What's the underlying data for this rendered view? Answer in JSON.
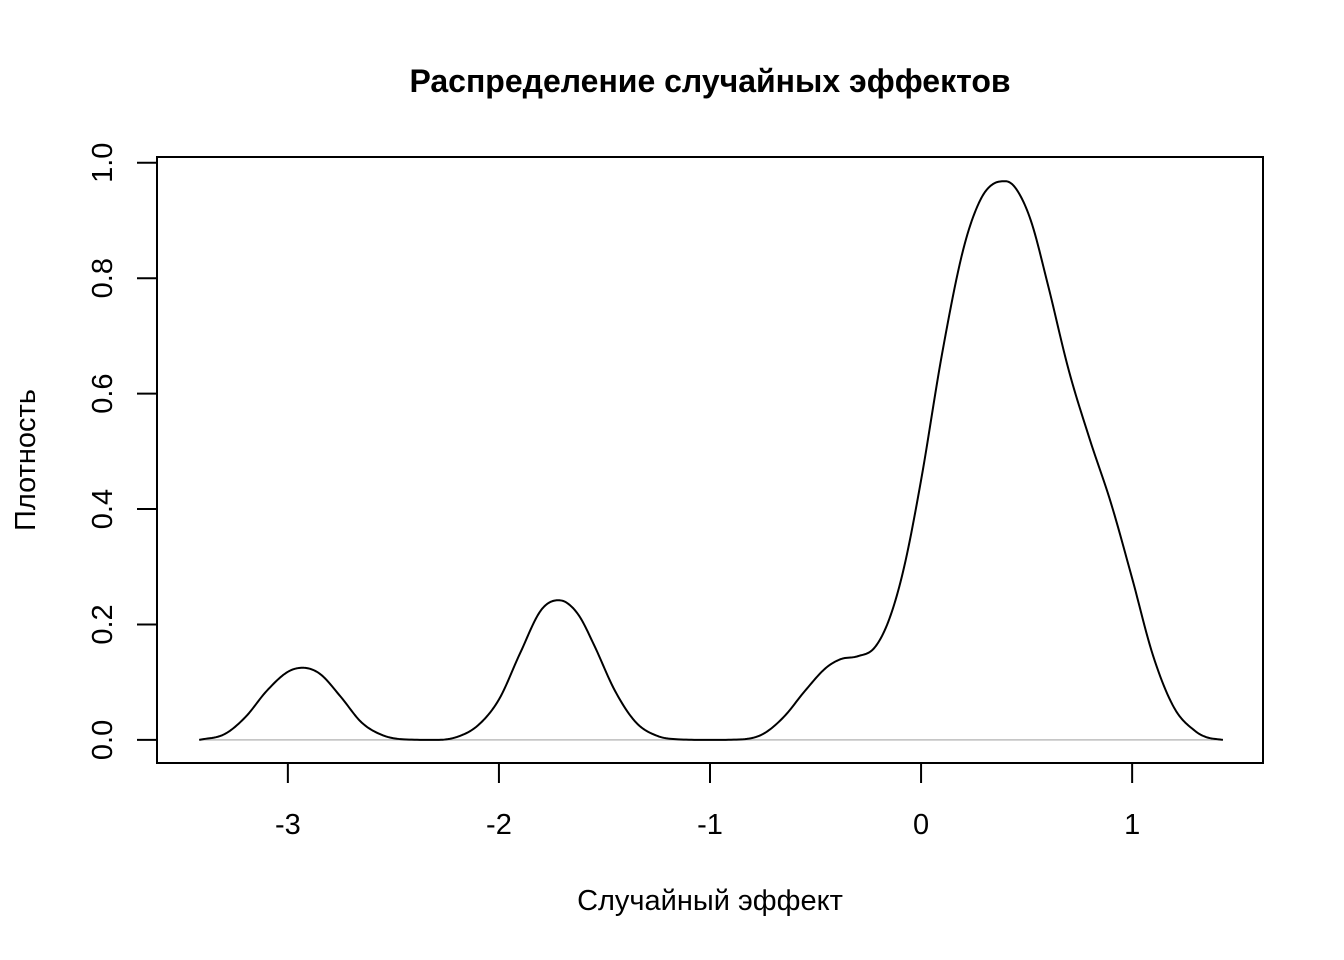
{
  "chart_data": {
    "type": "line",
    "title": "Распределение случайных эффектов",
    "xlabel": "Случайный эффект",
    "ylabel": "Плотность",
    "xlim": [
      -3.62,
      1.62
    ],
    "ylim": [
      -0.04,
      1.01
    ],
    "x_ticks": [
      -3,
      -2,
      -1,
      0,
      1
    ],
    "x_tick_labels": [
      "-3",
      "-2",
      "-1",
      "0",
      "1"
    ],
    "y_ticks": [
      0.0,
      0.2,
      0.4,
      0.6,
      0.8,
      1.0
    ],
    "y_tick_labels": [
      "0.0",
      "0.2",
      "0.4",
      "0.6",
      "0.8",
      "1.0"
    ],
    "grid": false,
    "legend": "none",
    "baseline": {
      "y": 0,
      "color": "#bebebe"
    },
    "line_color": "#000000",
    "series": [
      {
        "x": [
          -3.42,
          -3.3,
          -3.2,
          -3.1,
          -3.0,
          -2.93,
          -2.85,
          -2.75,
          -2.65,
          -2.55,
          -2.45,
          -2.3,
          -2.2,
          -2.1,
          -2.0,
          -1.9,
          -1.8,
          -1.72,
          -1.68,
          -1.62,
          -1.55,
          -1.45,
          -1.35,
          -1.25,
          -1.15,
          -1.0,
          -0.85,
          -0.75,
          -0.65,
          -0.55,
          -0.45,
          -0.38,
          -0.3,
          -0.22,
          -0.15,
          -0.08,
          0.0,
          0.1,
          0.2,
          0.28,
          0.35,
          0.4,
          0.45,
          0.52,
          0.6,
          0.7,
          0.8,
          0.9,
          1.0,
          1.1,
          1.2,
          1.3,
          1.35,
          1.43
        ],
        "y": [
          0.0,
          0.01,
          0.04,
          0.085,
          0.118,
          0.125,
          0.115,
          0.075,
          0.03,
          0.008,
          0.001,
          0.0,
          0.005,
          0.025,
          0.07,
          0.15,
          0.225,
          0.242,
          0.238,
          0.215,
          0.165,
          0.085,
          0.03,
          0.007,
          0.001,
          0.0,
          0.001,
          0.01,
          0.04,
          0.085,
          0.125,
          0.14,
          0.145,
          0.16,
          0.21,
          0.3,
          0.45,
          0.67,
          0.85,
          0.935,
          0.965,
          0.968,
          0.955,
          0.9,
          0.79,
          0.64,
          0.52,
          0.41,
          0.28,
          0.145,
          0.055,
          0.015,
          0.005,
          0.0
        ]
      }
    ]
  }
}
